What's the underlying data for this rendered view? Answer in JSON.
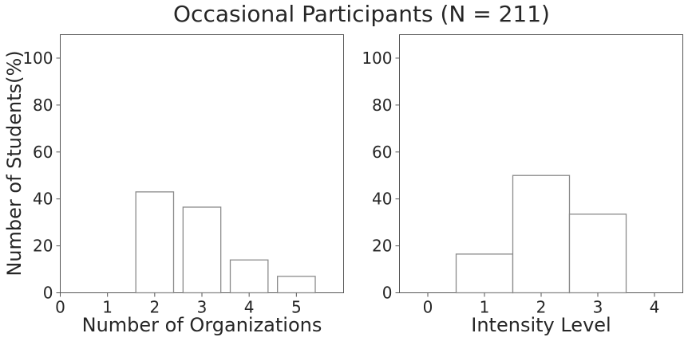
{
  "figure": {
    "title": "Occasional Participants (N = 211)"
  },
  "chart_data": [
    {
      "type": "bar",
      "title": "",
      "xlabel": "Number of Organizations",
      "ylabel": "Number of Students(%)",
      "x_ticks": [
        0,
        1,
        2,
        3,
        4,
        5
      ],
      "xlim": [
        0,
        6
      ],
      "ylim": [
        0,
        110
      ],
      "y_ticks": [
        0,
        20,
        40,
        60,
        80,
        100
      ],
      "bar_width": 0.8,
      "x": [
        2,
        3,
        4,
        5
      ],
      "values": [
        43,
        36.5,
        14,
        7
      ],
      "grid": false
    },
    {
      "type": "bar",
      "title": "",
      "xlabel": "Intensity Level",
      "ylabel": "",
      "x_ticks": [
        0,
        1,
        2,
        3,
        4
      ],
      "xlim": [
        -0.5,
        4.5
      ],
      "ylim": [
        0,
        110
      ],
      "y_ticks": [
        0,
        20,
        40,
        60,
        80,
        100
      ],
      "bar_width": 1.0,
      "x": [
        1,
        2,
        3
      ],
      "values": [
        16.5,
        50,
        33.5
      ],
      "grid": false
    }
  ]
}
